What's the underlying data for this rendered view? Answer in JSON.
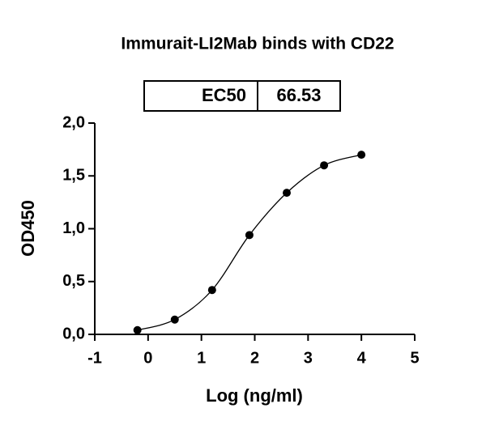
{
  "chart_data": {
    "type": "scatter",
    "title": "Immurait-LI2Mab binds with CD22",
    "ec50_label": "EC50",
    "ec50_value": 66.53,
    "x_label": "Log (ng/ml)",
    "y_label": "OD450",
    "x": [
      -0.2,
      0.5,
      1.2,
      1.9,
      2.6,
      3.3,
      4.0
    ],
    "series": [
      {
        "name": "OD450",
        "color": "#000000",
        "values": [
          0.04,
          0.14,
          0.42,
          0.94,
          1.34,
          1.6,
          1.7
        ]
      }
    ],
    "line": true,
    "xlim": [
      -1,
      5
    ],
    "xticks": [
      -1,
      0,
      1,
      2,
      3,
      4,
      5
    ],
    "ylim": [
      0,
      2
    ],
    "yticks": [
      {
        "value": 0,
        "label": "0,0"
      },
      {
        "value": 0.5,
        "label": "0,5"
      },
      {
        "value": 1,
        "label": "1,0"
      },
      {
        "value": 1.5,
        "label": "1,5"
      },
      {
        "value": 2,
        "label": "2,0"
      }
    ],
    "grid": false
  }
}
